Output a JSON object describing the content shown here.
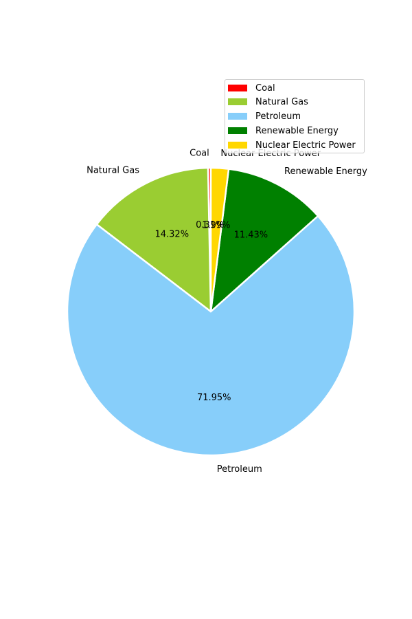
{
  "chart_data": {
    "type": "pie",
    "title": "",
    "legend_position": "top-right",
    "slices": [
      {
        "label": "Coal",
        "value": 0.31,
        "pct_label": "0.31%",
        "color": "#ff0000"
      },
      {
        "label": "Natural Gas",
        "value": 14.32,
        "pct_label": "14.32%",
        "color": "#9acd32"
      },
      {
        "label": "Petroleum",
        "value": 71.95,
        "pct_label": "71.95%",
        "color": "#87cefa"
      },
      {
        "label": "Renewable Energy",
        "value": 11.43,
        "pct_label": "11.43%",
        "color": "#008000"
      },
      {
        "label": "Nuclear Electric Power",
        "value": 1.99,
        "pct_label": "1.99%",
        "color": "#ffd700"
      }
    ]
  }
}
